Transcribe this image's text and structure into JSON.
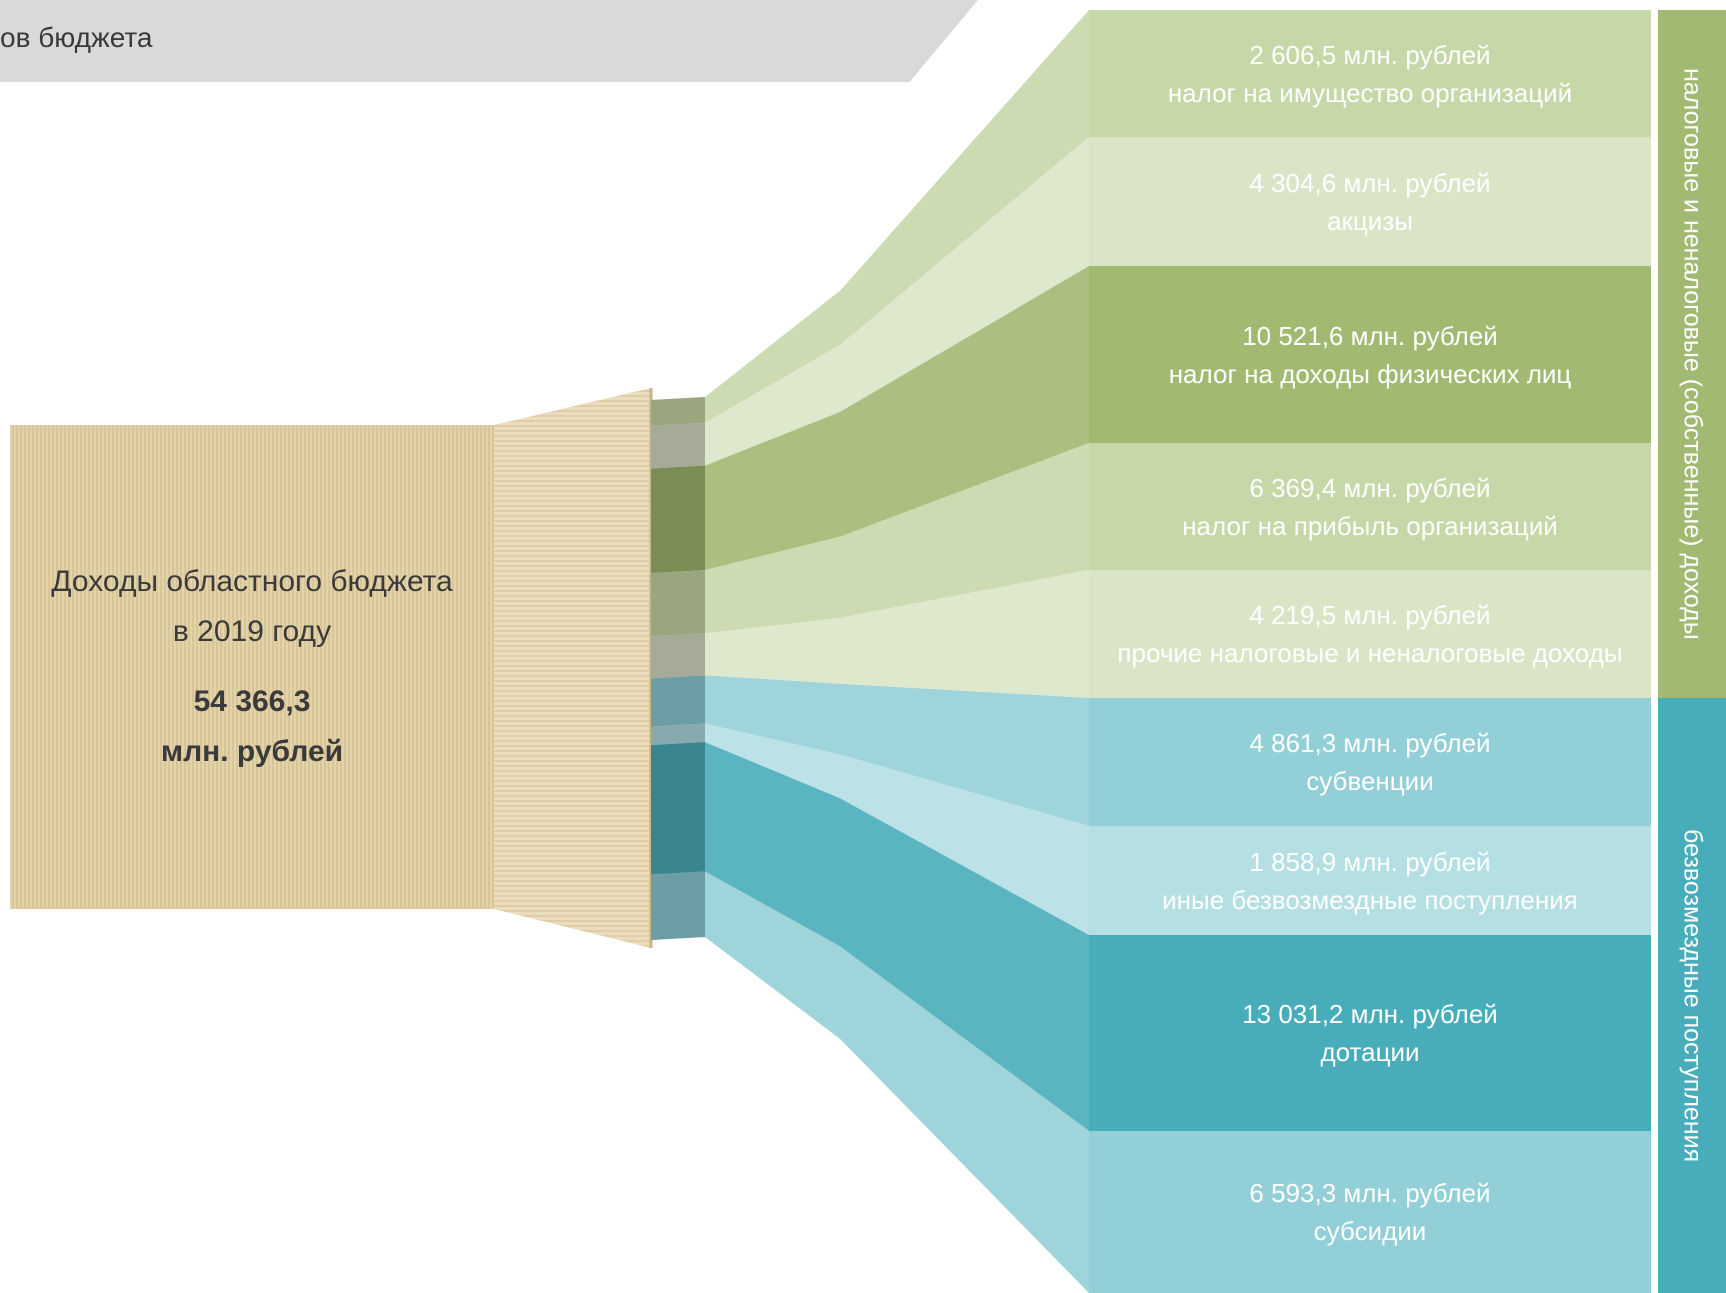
{
  "header": {
    "title": "ов бюджета"
  },
  "source": {
    "title_line1": "Доходы областного бюджета",
    "title_line2": "в 2019 году",
    "value_line1": "54 366,3",
    "value_line2": "млн. рублей",
    "color": "#e3d3ab"
  },
  "categories": [
    {
      "amount": "2 606,5 млн. рублей",
      "label": "налог на имущество организаций",
      "value": 2606.5,
      "color": "#c6d7a8",
      "text_color": "#ffffff"
    },
    {
      "amount": "4 304,6 млн. рублей",
      "label": "акцизы",
      "value": 4304.6,
      "color": "#dae5c8",
      "text_color": "#ffffff"
    },
    {
      "amount": "10 521,6 млн. рублей",
      "label": "налог на доходы физических лиц",
      "value": 10521.6,
      "color": "#a2b972",
      "text_color": "#ffffff"
    },
    {
      "amount": "6 369,4 млн. рублей",
      "label": "налог на прибыль организаций",
      "value": 6369.4,
      "color": "#c6d7a8",
      "text_color": "#ffffff"
    },
    {
      "amount": "4 219,5 млн. рублей",
      "label": "прочие налоговые и неналоговые доходы",
      "value": 4219.5,
      "color": "#dae5c8",
      "text_color": "#ffffff"
    },
    {
      "amount": "4 861,3 млн. рублей",
      "label": "субвенции",
      "value": 4861.3,
      "color": "#93cfd6",
      "text_color": "#ffffff"
    },
    {
      "amount": "1 858,9 млн. рублей",
      "label": "иные безвозмездные поступления",
      "value": 1858.9,
      "color": "#b4dfe3",
      "text_color": "#ffffff"
    },
    {
      "amount": "13 031,2 млн. рублей",
      "label": "дотации",
      "value": 13031.2,
      "color": "#48adba",
      "text_color": "#ffffff"
    },
    {
      "amount": "6 593,3 млн. рублей",
      "label": "субсидии",
      "value": 6593.3,
      "color": "#93cfd6",
      "text_color": "#ffffff"
    }
  ],
  "groups": [
    {
      "label": "налоговые и неналоговые (собственные) доходы",
      "color": "#a2b972"
    },
    {
      "label": "безвозмездные поступления",
      "color": "#48adba"
    }
  ]
}
